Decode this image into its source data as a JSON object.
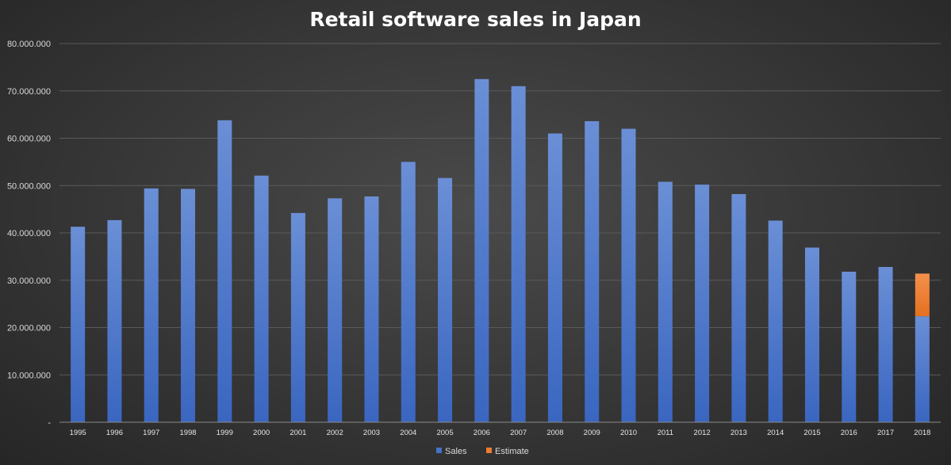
{
  "chart_data": {
    "type": "bar",
    "stacked": true,
    "title": "Retail software sales in Japan",
    "xlabel": "",
    "ylabel": "",
    "ylim": [
      0,
      80000000
    ],
    "yticks": [
      "-",
      "10.000.000",
      "20.000.000",
      "30.000.000",
      "40.000.000",
      "50.000.000",
      "60.000.000",
      "70.000.000",
      "80.000.000"
    ],
    "grid": true,
    "legend_position": "bottom",
    "categories": [
      "1995",
      "1996",
      "1997",
      "1998",
      "1999",
      "2000",
      "2001",
      "2002",
      "2003",
      "2004",
      "2005",
      "2006",
      "2007",
      "2008",
      "2009",
      "2010",
      "2011",
      "2012",
      "2013",
      "2014",
      "2015",
      "2016",
      "2017",
      "2018"
    ],
    "series": [
      {
        "name": "Sales",
        "color": "#4472c4",
        "values": [
          41300000,
          42700000,
          49400000,
          49300000,
          63800000,
          52100000,
          44200000,
          47300000,
          47700000,
          55000000,
          51600000,
          72500000,
          71000000,
          61000000,
          63600000,
          62000000,
          50800000,
          50200000,
          48200000,
          42600000,
          36900000,
          31800000,
          32800000,
          22400000
        ]
      },
      {
        "name": "Estimate",
        "color": "#ed7d31",
        "values": [
          0,
          0,
          0,
          0,
          0,
          0,
          0,
          0,
          0,
          0,
          0,
          0,
          0,
          0,
          0,
          0,
          0,
          0,
          0,
          0,
          0,
          0,
          0,
          9000000
        ]
      }
    ]
  }
}
